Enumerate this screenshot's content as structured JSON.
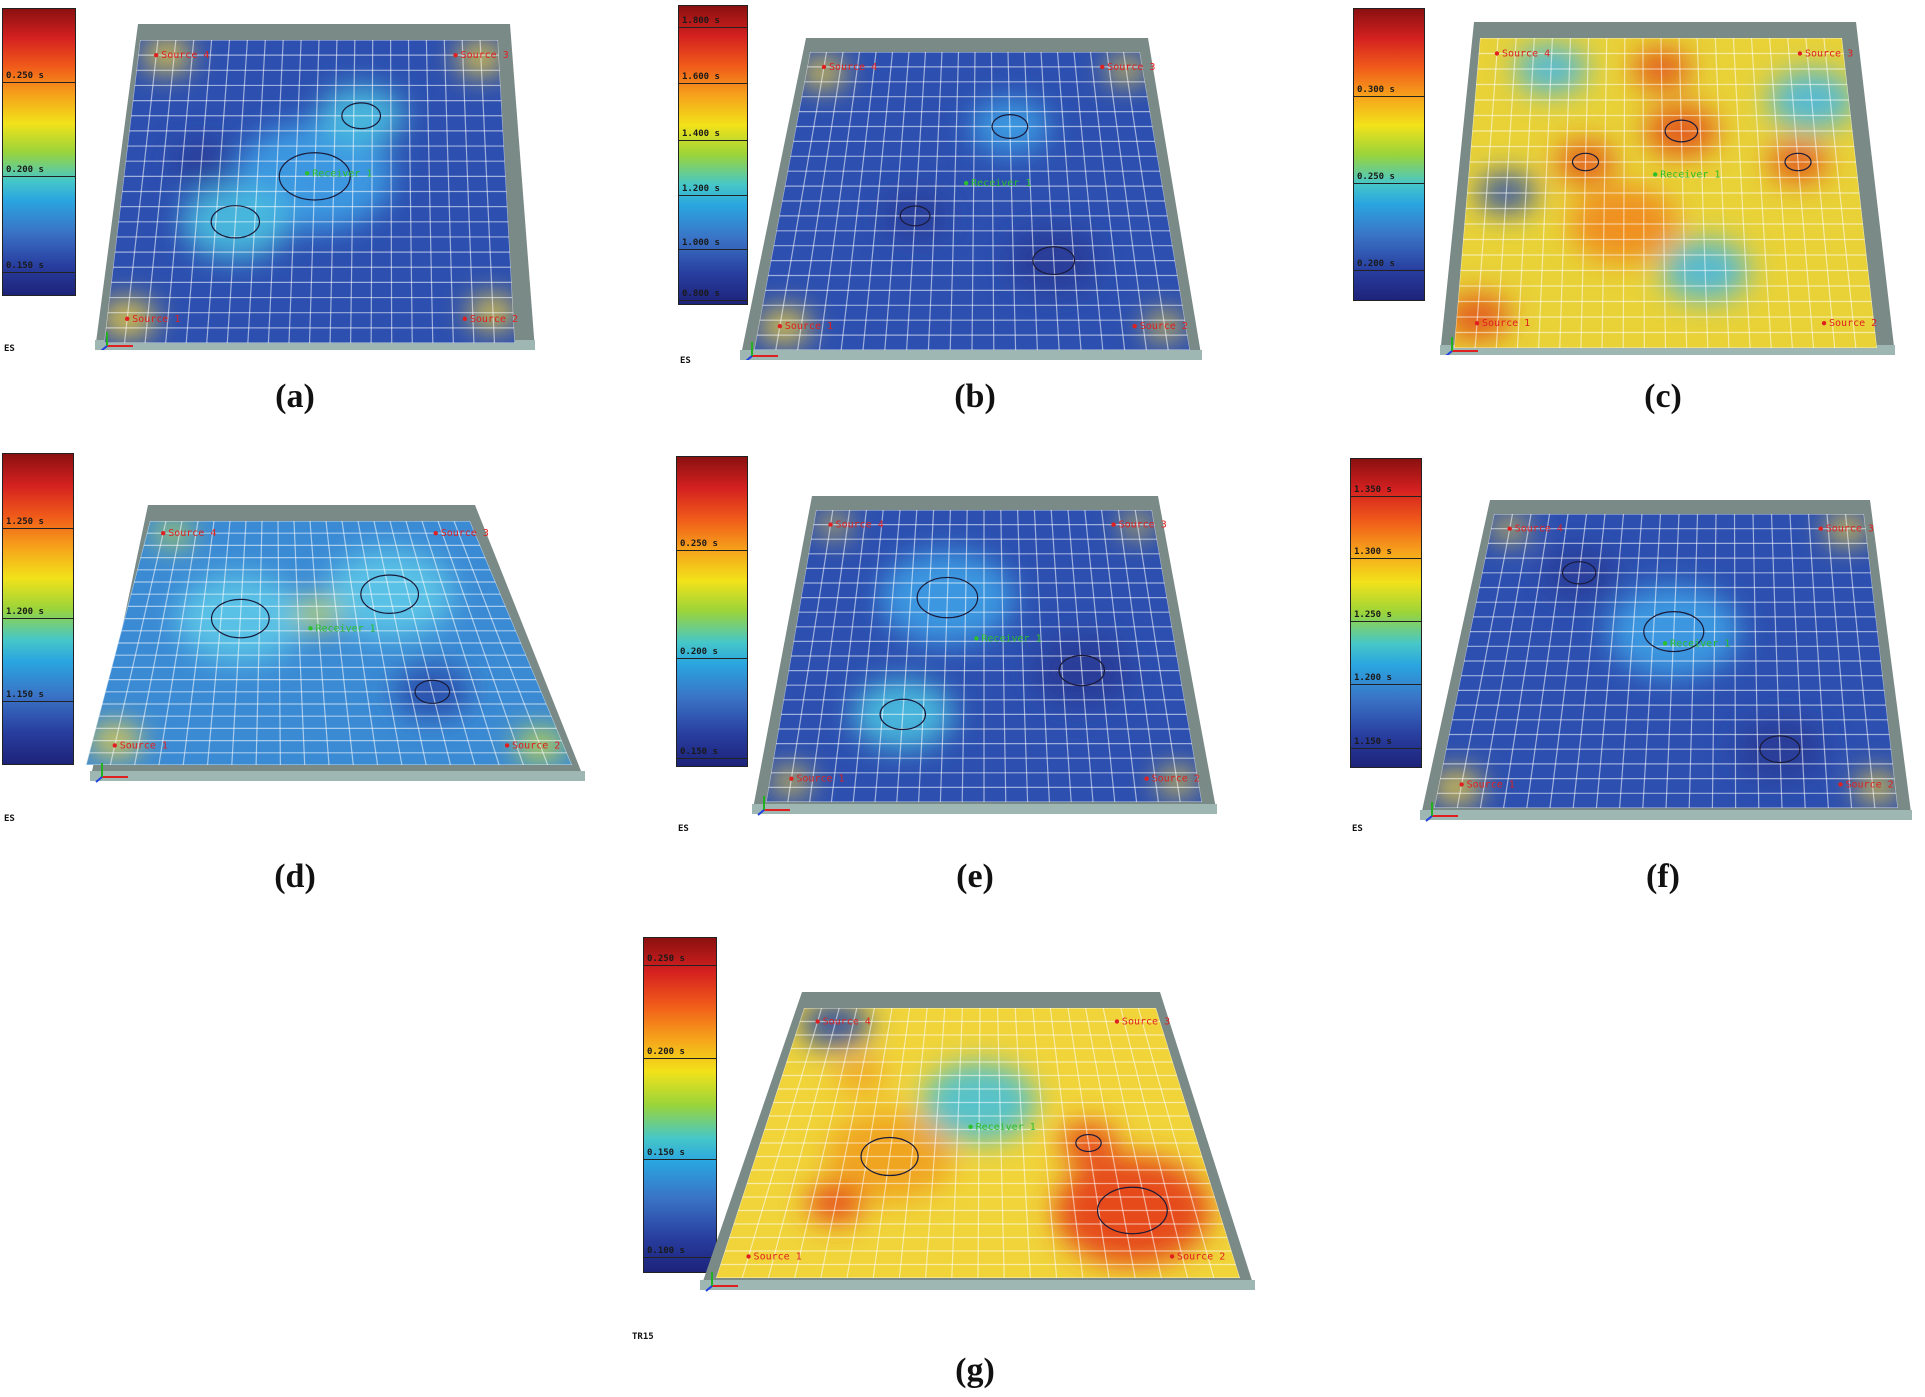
{
  "panels": [
    {
      "id": "a",
      "caption": "(a)",
      "unit": "ES",
      "theme": "blue",
      "ticks": [
        "0.250 s",
        "0.200 s",
        "0.150 s"
      ],
      "labels": {
        "s1": "Source 1",
        "s2": "Source 2",
        "s3": "Source 3",
        "s4": "Source 4",
        "r1": "Receiver 1"
      }
    },
    {
      "id": "b",
      "caption": "(b)",
      "unit": "ES",
      "theme": "blue",
      "ticks": [
        "1.800 s",
        "1.600 s",
        "1.400 s",
        "1.200 s",
        "1.000 s",
        "0.800 s"
      ],
      "labels": {
        "s1": "Source 1",
        "s2": "Source 2",
        "s3": "Source 3",
        "s4": "Source 4",
        "r1": "Receiver 1"
      }
    },
    {
      "id": "c",
      "caption": "(c)",
      "unit": "",
      "theme": "warm",
      "ticks": [
        "0.300 s",
        "0.250 s",
        "0.200 s"
      ],
      "labels": {
        "s1": "Source 1",
        "s2": "Source 2",
        "s3": "Source 3",
        "s4": "Source 4",
        "r1": "Receiver 1"
      }
    },
    {
      "id": "d",
      "caption": "(d)",
      "unit": "ES",
      "theme": "mixed",
      "ticks": [
        "1.250 s",
        "1.200 s",
        "1.150 s"
      ],
      "labels": {
        "s1": "Source 1",
        "s2": "Source 2",
        "s3": "Source 3",
        "s4": "Source 4",
        "r1": "Receiver 1"
      }
    },
    {
      "id": "e",
      "caption": "(e)",
      "unit": "ES",
      "theme": "blue",
      "ticks": [
        "0.250 s",
        "0.200 s",
        "0.150 s"
      ],
      "labels": {
        "s1": "Source 1",
        "s2": "Source 2",
        "s3": "Source 3",
        "s4": "Source 4",
        "r1": "Receiver 1"
      }
    },
    {
      "id": "f",
      "caption": "(f)",
      "unit": "ES",
      "theme": "blue",
      "ticks": [
        "1.350 s",
        "1.300 s",
        "1.250 s",
        "1.200 s",
        "1.150 s"
      ],
      "labels": {
        "s1": "Source 1",
        "s2": "Source 2",
        "s3": "Source 3",
        "s4": "Source 4",
        "r1": "Receiver 1"
      }
    },
    {
      "id": "g",
      "caption": "(g)",
      "unit": "TR15",
      "theme": "hot",
      "ticks": [
        "0.250 s",
        "0.200 s",
        "0.150 s",
        "0.100 s"
      ],
      "labels": {
        "s1": "Source 1",
        "s2": "Source 2",
        "s3": "Source 3",
        "s4": "Source 4",
        "r1": "Receiver 1"
      }
    }
  ],
  "colors": {
    "blue_base": "#2c4fb0",
    "warm_base": "#e8d238",
    "mixed_base": "#3a8ad4",
    "hot_base": "#f0d43a",
    "source_label": "#e02020",
    "receiver_label": "#2bbf2b"
  }
}
